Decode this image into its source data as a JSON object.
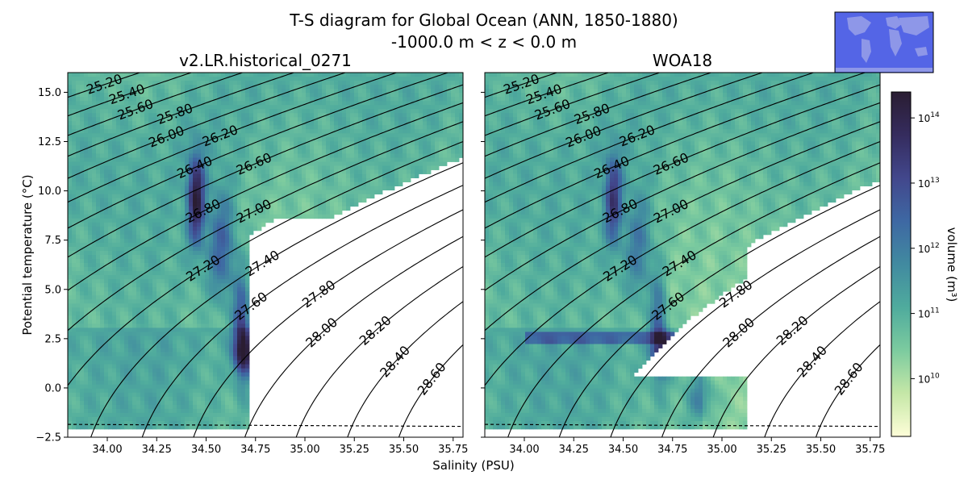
{
  "title_line1": "T-S diagram for Global Ocean (ANN, 1850-1880)",
  "title_line2": "-1000.0 m < z < 0.0 m",
  "xlabel": "Salinity (PSU)",
  "ylabel": "Potential temperature (°C)",
  "colorbar": {
    "label": "volume (m³)",
    "scale": "log",
    "range": [
      1300000000.0,
      250000000000000.0
    ],
    "ticks": [
      {
        "value": 10000000000.0,
        "base": "10",
        "exp": "10"
      },
      {
        "value": 100000000000.0,
        "base": "10",
        "exp": "11"
      },
      {
        "value": 1000000000000.0,
        "base": "10",
        "exp": "12"
      },
      {
        "value": 10000000000000.0,
        "base": "10",
        "exp": "13"
      },
      {
        "value": 100000000000000.0,
        "base": "10",
        "exp": "14"
      }
    ],
    "colormap": [
      "#fefed8",
      "#c5e7a7",
      "#7ccb9f",
      "#4fab9d",
      "#418aa0",
      "#3e68a3",
      "#42478c",
      "#352c5e",
      "#2a1d32"
    ]
  },
  "inset_map": {
    "ocean_color": "#5465e6",
    "land_color": "#8e97e8"
  },
  "chart_data": {
    "type": "heatmap",
    "panels": [
      {
        "name": "v2.LR.historical_0271"
      },
      {
        "name": "WOA18"
      }
    ],
    "xlim": [
      33.8,
      35.8
    ],
    "ylim": [
      -2.5,
      16.0
    ],
    "xticks": [
      "34.00",
      "34.25",
      "34.50",
      "34.75",
      "35.00",
      "35.25",
      "35.50",
      "35.75"
    ],
    "yticks": [
      "−2.5",
      "0.0",
      "2.5",
      "5.0",
      "7.5",
      "10.0",
      "12.5",
      "15.0"
    ],
    "density_contours": [
      "25.20",
      "25.40",
      "25.60",
      "25.80",
      "26.00",
      "26.20",
      "26.40",
      "26.60",
      "26.80",
      "27.00",
      "27.20",
      "27.40",
      "27.60",
      "27.80",
      "28.00",
      "28.20",
      "28.40",
      "28.60"
    ],
    "freezing_line": {
      "style": "dashed",
      "t_at_smin": -1.85,
      "t_at_smax": -1.95
    }
  }
}
